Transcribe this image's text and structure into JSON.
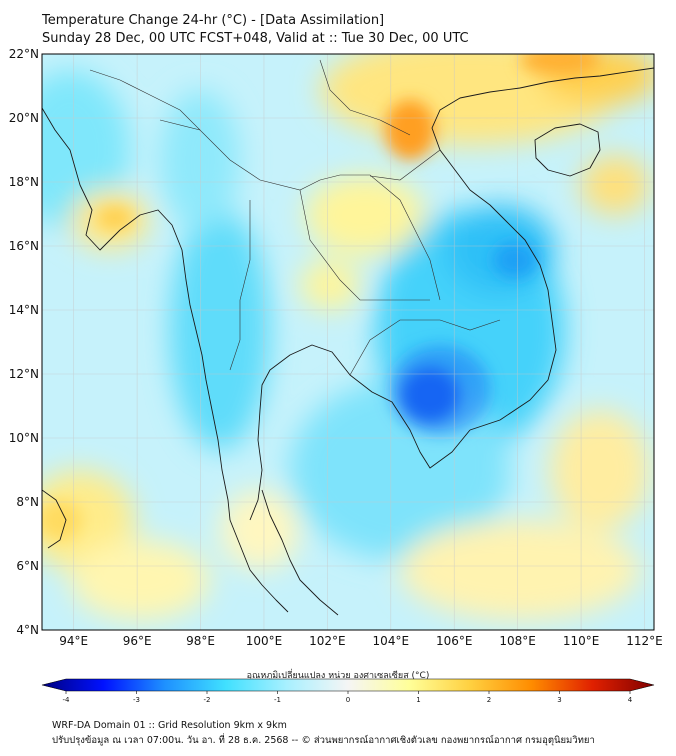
{
  "header": {
    "title": "Temperature Change 24-hr (°C) - [Data Assimilation]",
    "subtitle": "Sunday 28 Dec, 00 UTC FCST+048, Valid at :: Tue 30 Dec, 00 UTC"
  },
  "map": {
    "lat_labels": [
      "22°N",
      "20°N",
      "18°N",
      "16°N",
      "14°N",
      "12°N",
      "10°N",
      "8°N",
      "6°N",
      "4°N"
    ],
    "lon_labels": [
      "94°E",
      "96°E",
      "98°E",
      "100°E",
      "102°E",
      "104°E",
      "106°E",
      "108°E",
      "110°E",
      "112°E"
    ],
    "lat_range": [
      4,
      22
    ],
    "lon_range": [
      93,
      112.3
    ],
    "grid": true
  },
  "colorbar": {
    "label": "อุณหภูมิเปลี่ยนแปลง หน่วย องศาเซลเซียส (°C)",
    "tick_labels": [
      "-4",
      "-3",
      "-2",
      "-1",
      "0",
      "1",
      "2",
      "3",
      "4"
    ],
    "range": [
      -4,
      4
    ],
    "colors": [
      "#00007f",
      "#0011ff",
      "#1e90ff",
      "#40e0ff",
      "#a8f0ff",
      "#f5f5f5",
      "#ffff99",
      "#ffd040",
      "#ff8c00",
      "#e02000",
      "#800000"
    ]
  },
  "footer": {
    "line1": "WRF-DA Domain 01 :: Grid Resolution 9km x 9km",
    "line2": "ปรับปรุงข้อมูล ณ เวลา 07:00น. วัน อา. ที่ 28 ธ.ค. 2568 -- © ส่วนพยากรณ์อากาศเชิงตัวเลข กองพยากรณ์อากาศ กรมอุตุนิยมวิทยา"
  }
}
